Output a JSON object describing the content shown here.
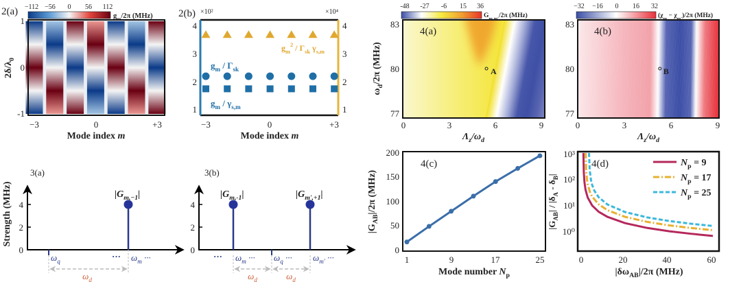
{
  "chart_data": [
    {
      "type": "heatmap",
      "title": "2(a)",
      "x": [
        -3,
        -2,
        -1,
        0,
        1,
        2,
        3
      ],
      "xticks": [
        "−3",
        "0",
        "+3"
      ],
      "xlabel": [
        [
          "Mode index ",
          ""
        ],
        [
          "m",
          "i"
        ]
      ],
      "ylabel": [
        [
          "2δ/λ",
          ""
        ],
        [
          "0",
          "sub"
        ]
      ],
      "yticks": [
        "1",
        "0",
        "-1"
      ],
      "y_samples": [
        1,
        0.5,
        0,
        -0.5,
        -1
      ],
      "values": [
        [
          -112,
          0,
          112,
          0,
          -112
        ],
        [
          -30,
          -112,
          0,
          112,
          30
        ],
        [
          112,
          0,
          -112,
          0,
          112
        ],
        [
          30,
          112,
          0,
          -112,
          -30
        ],
        [
          -112,
          0,
          112,
          0,
          -112
        ],
        [
          -30,
          -112,
          0,
          112,
          30
        ],
        [
          112,
          0,
          -112,
          0,
          112
        ]
      ],
      "colorbar": {
        "range": [
          -112,
          112
        ],
        "ticks": [
          "−112",
          "−56",
          "0",
          "56",
          "112"
        ],
        "colors": [
          "#0b3a88",
          "#5a9ad4",
          "#f4f4f4",
          "#e2453c",
          "#6a0012"
        ],
        "label": [
          [
            "g",
            ""
          ],
          [
            "m",
            "sub"
          ],
          [
            "/2π  (MHz)",
            ""
          ]
        ]
      }
    },
    {
      "type": "scatter",
      "title": "2(b)",
      "x": [
        -3,
        -2,
        -1,
        0,
        1,
        2,
        3
      ],
      "xticks": [
        "−3",
        "0",
        "+3"
      ],
      "xlabel": [
        [
          "Mode index ",
          ""
        ],
        [
          "m",
          "i"
        ]
      ],
      "left_axis": {
        "multiplier": "×10²",
        "ticks": [
          "4",
          "3",
          "2",
          "1"
        ],
        "range": [
          0.8,
          4.2
        ],
        "color": "#2a7ab2"
      },
      "right_axis": {
        "multiplier": "×10⁴",
        "ticks": [
          "4",
          "3",
          "2",
          "1"
        ],
        "range": [
          0.8,
          4.2
        ],
        "color": "#e6b53a"
      },
      "series": [
        {
          "name": [
            [
              "g",
              ""
            ],
            [
              "m",
              "sub"
            ],
            [
              "2",
              "sup"
            ],
            " / Γ",
            [
              "sk",
              "sub"
            ],
            " γ",
            [
              "s,m",
              "sub"
            ]
          ],
          "marker": "triangle",
          "axis": "right",
          "color": "#e0a830",
          "values": [
            3.7,
            3.7,
            3.7,
            3.7,
            3.7,
            3.7,
            3.7
          ]
        },
        {
          "name": [
            [
              "g",
              ""
            ],
            [
              "m",
              "sub"
            ],
            [
              " / Γ",
              ""
            ],
            [
              "sk",
              "sub"
            ]
          ],
          "marker": "circle",
          "axis": "left",
          "color": "#1f6fa6",
          "values": [
            2.2,
            2.2,
            2.2,
            2.2,
            2.2,
            2.2,
            2.2
          ]
        },
        {
          "name": [
            [
              "g",
              ""
            ],
            [
              "m",
              "sub"
            ],
            [
              " / γ",
              ""
            ],
            [
              "s,m",
              "sub"
            ]
          ],
          "marker": "square",
          "axis": "left",
          "color": "#1f6fa6",
          "values": [
            1.75,
            1.75,
            1.75,
            1.75,
            1.75,
            1.75,
            1.75
          ]
        }
      ]
    },
    {
      "type": "heatmap",
      "title": "4(a)",
      "xlim": [
        0,
        9
      ],
      "ylim": [
        76.8,
        83.2
      ],
      "xticks": [
        "0",
        "3",
        "6",
        "9"
      ],
      "yticks": [
        "83",
        "80",
        "77"
      ],
      "xlabel": [
        [
          "Λ",
          ""
        ],
        [
          "z",
          "sub"
        ],
        [
          "/ω",
          ""
        ],
        [
          "d",
          "sub"
        ]
      ],
      "ylabel": [
        [
          "ω",
          ""
        ],
        [
          "d",
          "sub"
        ],
        [
          "/2π  (MHz)",
          ""
        ]
      ],
      "point": {
        "label": "A",
        "x": 5.4,
        "y": 80
      },
      "colorbar": {
        "range": [
          -48,
          36
        ],
        "ticks": [
          "-48",
          "-27",
          "-6",
          "15",
          "36"
        ],
        "colors": [
          "#3a4ea6",
          "#ffffff",
          "#f6ea40",
          "#f0a030",
          "#e8342a"
        ],
        "label": [
          [
            "G",
            ""
          ],
          [
            "m,m'",
            "sub"
          ],
          [
            "/2π  (MHz)",
            ""
          ]
        ]
      }
    },
    {
      "type": "heatmap",
      "title": "4(b)",
      "xlim": [
        0,
        9
      ],
      "ylim": [
        76.8,
        83.2
      ],
      "xticks": [
        "0",
        "3",
        "6",
        "9"
      ],
      "yticks": [
        "83",
        "80",
        "77"
      ],
      "xlabel": [
        [
          "Λ",
          ""
        ],
        [
          "z",
          "sub"
        ],
        [
          "/ω",
          ""
        ],
        [
          "d",
          "sub"
        ]
      ],
      "point": {
        "label": "B",
        "x": 5.3,
        "y": 80
      },
      "colorbar": {
        "range": [
          -32,
          32
        ],
        "ticks": [
          "−32",
          "−16",
          "0",
          "16",
          "32"
        ],
        "colors": [
          "#3a4ea6",
          "#ffffff",
          "#e8303a"
        ],
        "label": [
          [
            "(χ",
            ""
          ],
          [
            "m",
            "sub"
          ],
          [
            " − χ",
            ""
          ],
          [
            "m'",
            "sub"
          ],
          [
            ")/2π  (MHz)",
            ""
          ]
        ]
      }
    },
    {
      "type": "stem",
      "title": "3(a)",
      "ylabel": "Strength (MHz)",
      "yticks": [
        "0",
        "2",
        "4"
      ],
      "stems": [
        {
          "value": 4,
          "label": [
            [
              "|G",
              ""
            ],
            [
              "m,−1",
              "sub"
            ],
            [
              "|",
              ""
            ]
          ]
        }
      ],
      "axis_marks": [
        [
          [
            "ω",
            ""
          ],
          [
            "q",
            "sub"
          ]
        ],
        "···",
        [
          [
            "ω",
            ""
          ],
          [
            "m",
            "sub"
          ],
          [
            " ···",
            ""
          ]
        ]
      ],
      "spacing_label": [
        [
          "ω",
          ""
        ],
        [
          "d",
          "sub"
        ]
      ]
    },
    {
      "type": "stem",
      "title": "3(b)",
      "yticks": [
        "0",
        "2",
        "4"
      ],
      "stems": [
        {
          "value": 4,
          "label": [
            [
              "|G",
              ""
            ],
            [
              "m,-1",
              "sub"
            ],
            [
              "|",
              ""
            ]
          ]
        },
        {
          "value": 4,
          "label": [
            [
              "|G",
              ""
            ],
            [
              "m',+1",
              "sub"
            ],
            [
              "|",
              ""
            ]
          ]
        }
      ],
      "axis_marks": [
        "···",
        [
          [
            "ω",
            ""
          ],
          [
            "m",
            "sub"
          ],
          [
            " ···",
            ""
          ]
        ],
        [
          [
            "ω",
            ""
          ],
          [
            "q",
            "sub"
          ],
          [
            "  ···",
            ""
          ]
        ],
        [
          [
            "ω",
            ""
          ],
          [
            "m'",
            "sub"
          ],
          [
            " ···",
            ""
          ]
        ]
      ],
      "spacing_label": [
        [
          "ω",
          ""
        ],
        [
          "d",
          "sub"
        ]
      ]
    },
    {
      "type": "line",
      "title": "4(c)",
      "x": [
        1,
        5,
        9,
        13,
        17,
        21,
        25
      ],
      "values": [
        16,
        48,
        79,
        110,
        140,
        167,
        193
      ],
      "xlim": [
        0.3,
        26
      ],
      "ylim": [
        -3,
        200
      ],
      "xticks": [
        "1",
        "9",
        "17",
        "25"
      ],
      "yticks": [
        "200",
        "150",
        "100",
        "50",
        "0"
      ],
      "xlabel": [
        [
          "Mode number ",
          ""
        ],
        [
          "N",
          "i"
        ],
        [
          "p",
          "sub"
        ]
      ],
      "ylabel": [
        [
          "|G",
          ""
        ],
        [
          "AB",
          "sub"
        ],
        [
          "|/2π  (MHz)",
          ""
        ]
      ],
      "color": "#3a6ea8"
    },
    {
      "type": "line",
      "title": "4(d)",
      "yscale": "log",
      "xlim": [
        -1.5,
        62
      ],
      "ylim": [
        0.17,
        1100
      ],
      "xticks": [
        "0",
        "20",
        "40",
        "60"
      ],
      "yticks": [
        "10³",
        "10²",
        "10¹",
        "10⁰"
      ],
      "xlabel": [
        [
          "|δω",
          ""
        ],
        [
          "AB",
          "sub"
        ],
        [
          "|/2π  (MHz)",
          ""
        ]
      ],
      "ylabel": [
        [
          "|G",
          ""
        ],
        [
          "AB",
          "sub"
        ],
        [
          "| / |δ",
          ""
        ],
        [
          "A",
          "sub"
        ],
        [
          " - δ",
          ""
        ],
        [
          "B",
          "sub"
        ],
        [
          "|",
          ""
        ]
      ],
      "legend_position": "top-right",
      "series": [
        {
          "name": [
            [
              "N",
              "i"
            ],
            [
              "p",
              "sub"
            ],
            [
              " = 9",
              ""
            ]
          ],
          "color": "#b5285c",
          "style": "solid",
          "x": [
            1.04,
            1.2,
            1.5,
            2,
            3,
            5,
            8,
            12,
            20,
            30,
            40,
            50,
            60
          ],
          "y": [
            975,
            195,
            78,
            39,
            19.5,
            9.75,
            5.57,
            3.55,
            2.05,
            1.34,
            1.0,
            0.8,
            0.66
          ]
        },
        {
          "name": [
            [
              "N",
              "i"
            ],
            [
              "p",
              "sub"
            ],
            [
              " = 17",
              ""
            ]
          ],
          "color": "#e8b030",
          "style": "dashdot",
          "x": [
            2.06,
            2.3,
            2.7,
            3,
            4,
            5,
            8,
            12,
            20,
            30,
            40,
            50,
            60
          ],
          "y": [
            1067,
            213,
            91,
            64,
            32,
            21.3,
            10.7,
            6.4,
            3.56,
            2.29,
            1.68,
            1.33,
            1.1
          ]
        },
        {
          "name": [
            [
              "N",
              "i"
            ],
            [
              "p",
              "sub"
            ],
            [
              " = 25",
              ""
            ]
          ],
          "color": "#3bb8dc",
          "style": "dashed",
          "x": [
            3.59,
            3.9,
            4.5,
            5,
            6,
            8,
            12,
            20,
            30,
            40,
            50,
            60
          ],
          "y": [
            1000,
            225,
            90,
            60,
            36,
            20,
            10.6,
            5.45,
            3.4,
            2.47,
            1.94,
            1.59
          ]
        }
      ]
    }
  ]
}
